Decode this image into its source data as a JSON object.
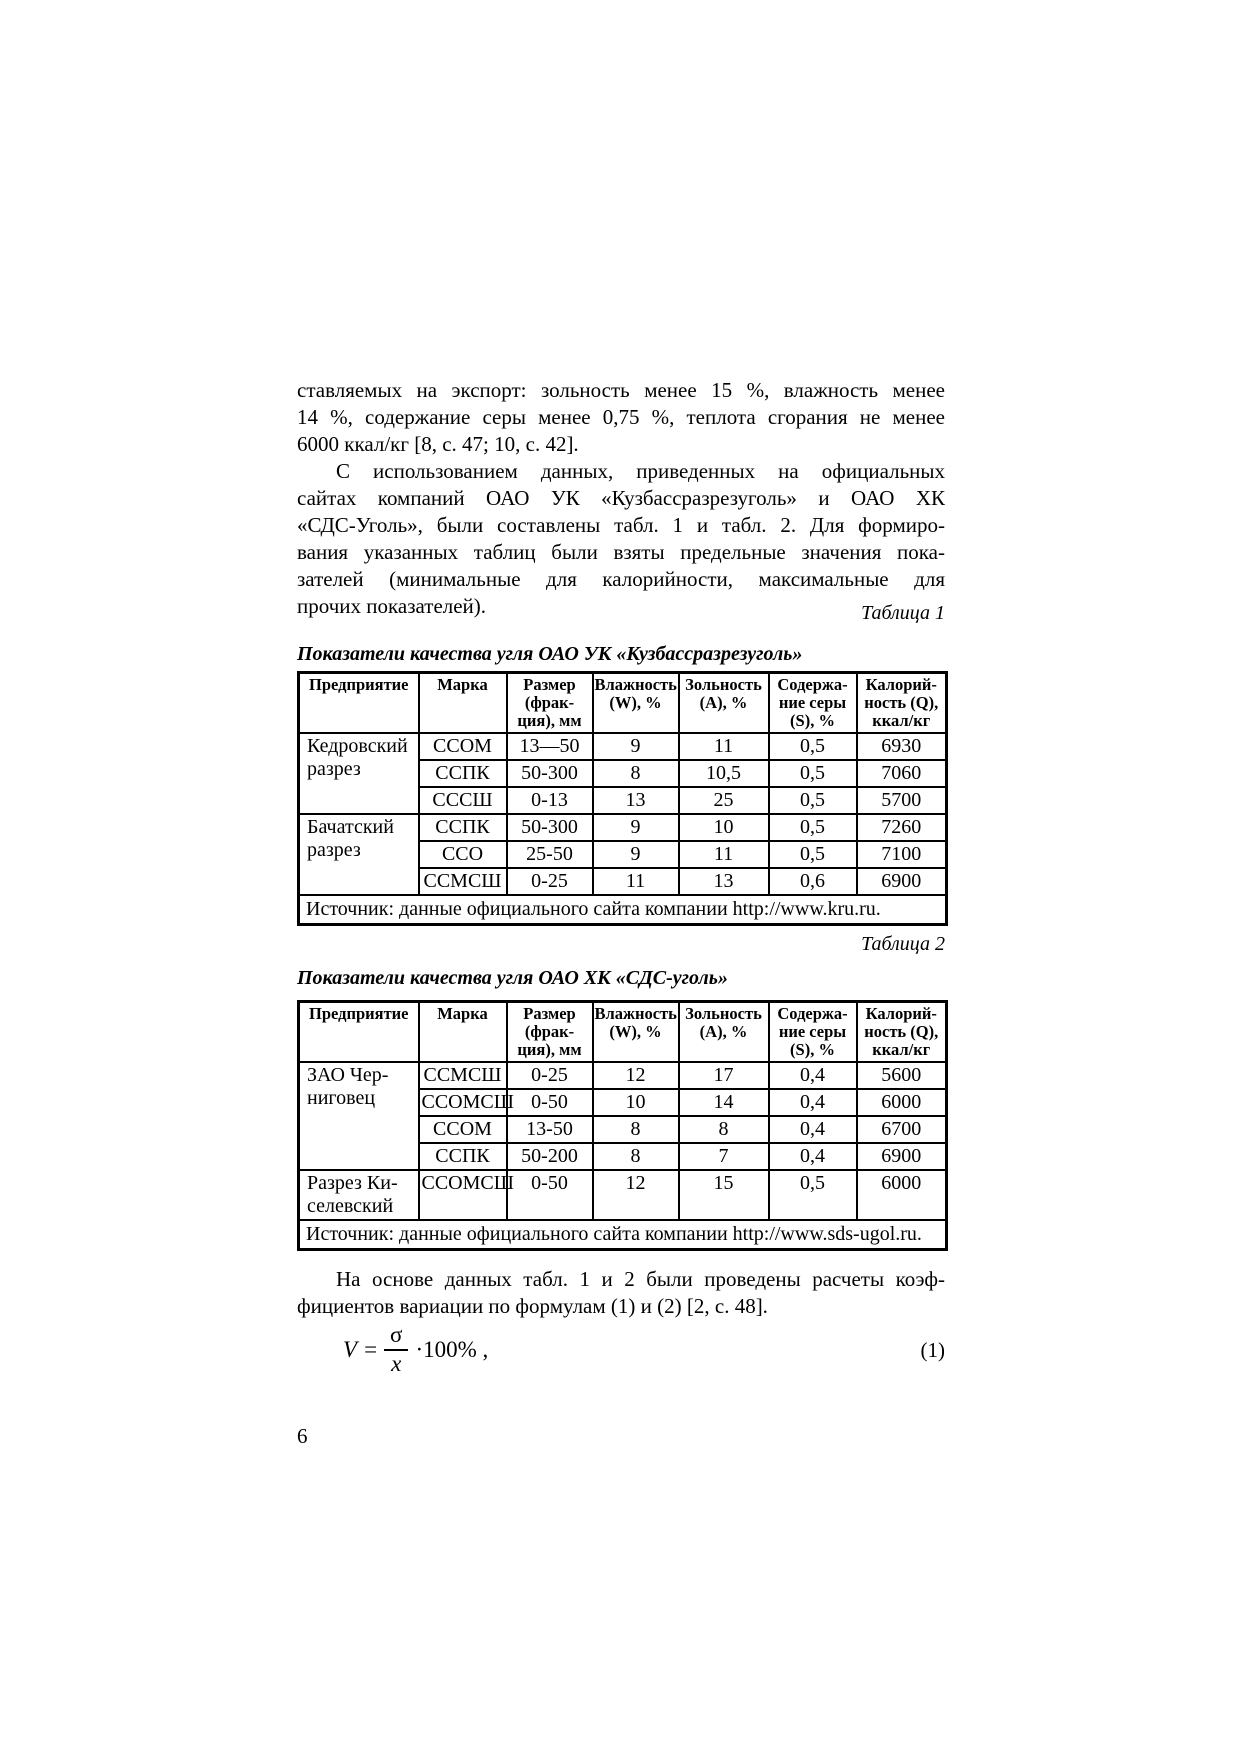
{
  "page_number": "6",
  "body": {
    "paragraph1": {
      "lines": [
        {
          "text": "ставляемых на экспорт: зольность менее 15 %, влажность менее",
          "justify": true,
          "indent": false
        },
        {
          "text": "14 %, содержание серы менее 0,75 %, теплота сгорания не менее",
          "justify": true,
          "indent": false
        },
        {
          "text": "6000 ккал/кг [8, с. 47; 10, с. 42].",
          "justify": false,
          "indent": false
        }
      ]
    },
    "paragraph2": {
      "lines": [
        {
          "text": "С использованием данных, приведенных на официальных",
          "justify": true,
          "indent": true
        },
        {
          "text": "сайтах компаний ОАО УК «Кузбассразрезуголь» и ОАО ХК",
          "justify": true,
          "indent": false
        },
        {
          "text": "«СДС-Уголь», были составлены табл. 1 и табл. 2. Для формиро-",
          "justify": true,
          "indent": false
        },
        {
          "text": "вания указанных таблиц были взяты предельные значения пока-",
          "justify": true,
          "indent": false
        },
        {
          "text": "зателей (минимальные для калорийности, максимальные для",
          "justify": true,
          "indent": false
        },
        {
          "text": "прочих показателей).",
          "justify": false,
          "indent": false
        }
      ]
    },
    "paragraph3": {
      "lines": [
        {
          "text": "На основе данных табл. 1 и 2 были проведены расчеты коэф-",
          "justify": true,
          "indent": true
        },
        {
          "text": "фициентов вариации по формулам (1) и (2) [2, с. 48].",
          "justify": false,
          "indent": false
        }
      ]
    }
  },
  "table1": {
    "caption": "Таблица 1",
    "title": "Показатели качества угля ОАО УК «Кузбассразрезуголь»",
    "headers": [
      "Предприятие",
      "Марка",
      "Размер\n(фрак-\nция), мм",
      "Влажность\n(W), %",
      "Зольность\n(А), %",
      "Содержа-\nние серы\n(S), %",
      "Калорий-\nность (Q),\nккал/кг"
    ],
    "groups": [
      {
        "name": "Кедровский\nразрез",
        "rows": [
          [
            "ССОМ",
            "13—50",
            "9",
            "11",
            "0,5",
            "6930"
          ],
          [
            "ССПК",
            "50-300",
            "8",
            "10,5",
            "0,5",
            "7060"
          ],
          [
            "СССШ",
            "0-13",
            "13",
            "25",
            "0,5",
            "5700"
          ]
        ]
      },
      {
        "name": "Бачатский\nразрез",
        "rows": [
          [
            "ССПК",
            "50-300",
            "9",
            "10",
            "0,5",
            "7260"
          ],
          [
            "ССО",
            "25-50",
            "9",
            "11",
            "0,5",
            "7100"
          ],
          [
            "ССМСШ",
            "0-25",
            "11",
            "13",
            "0,6",
            "6900"
          ]
        ]
      }
    ],
    "source": "Источник: данные официального сайта компании http://www.kru.ru."
  },
  "table2": {
    "caption": "Таблица 2",
    "title": "Показатели качества угля ОАО ХК «СДС-уголь»",
    "headers": [
      "Предприятие",
      "Марка",
      "Размер\n(фрак-\nция), мм",
      "Влажность\n(W), %",
      "Зольность\n(А), %",
      "Содержа-\nние серы\n(S), %",
      "Калорий-\nность (Q),\nккал/кг"
    ],
    "groups": [
      {
        "name": "ЗАО Чер-\nниговец",
        "rows": [
          [
            "ССМСШ",
            "0-25",
            "12",
            "17",
            "0,4",
            "5600"
          ],
          [
            "ССОМСШ",
            "0-50",
            "10",
            "14",
            "0,4",
            "6000"
          ],
          [
            "ССОМ",
            "13-50",
            "8",
            "8",
            "0,4",
            "6700"
          ],
          [
            "ССПК",
            "50-200",
            "8",
            "7",
            "0,4",
            "6900"
          ]
        ]
      },
      {
        "name": "Разрез Ки-\nселевский",
        "rows": [
          [
            "ССОМСШ",
            "0-50",
            "12",
            "15",
            "0,5",
            "6000"
          ]
        ]
      }
    ],
    "source": "Источник: данные официального сайта компании http://www.sds-ugol.ru."
  },
  "formula": {
    "lhs": "V",
    "equals": "=",
    "numerator": "σ",
    "denominator": "x",
    "rhs": "·100% ,",
    "number": "(1)"
  }
}
